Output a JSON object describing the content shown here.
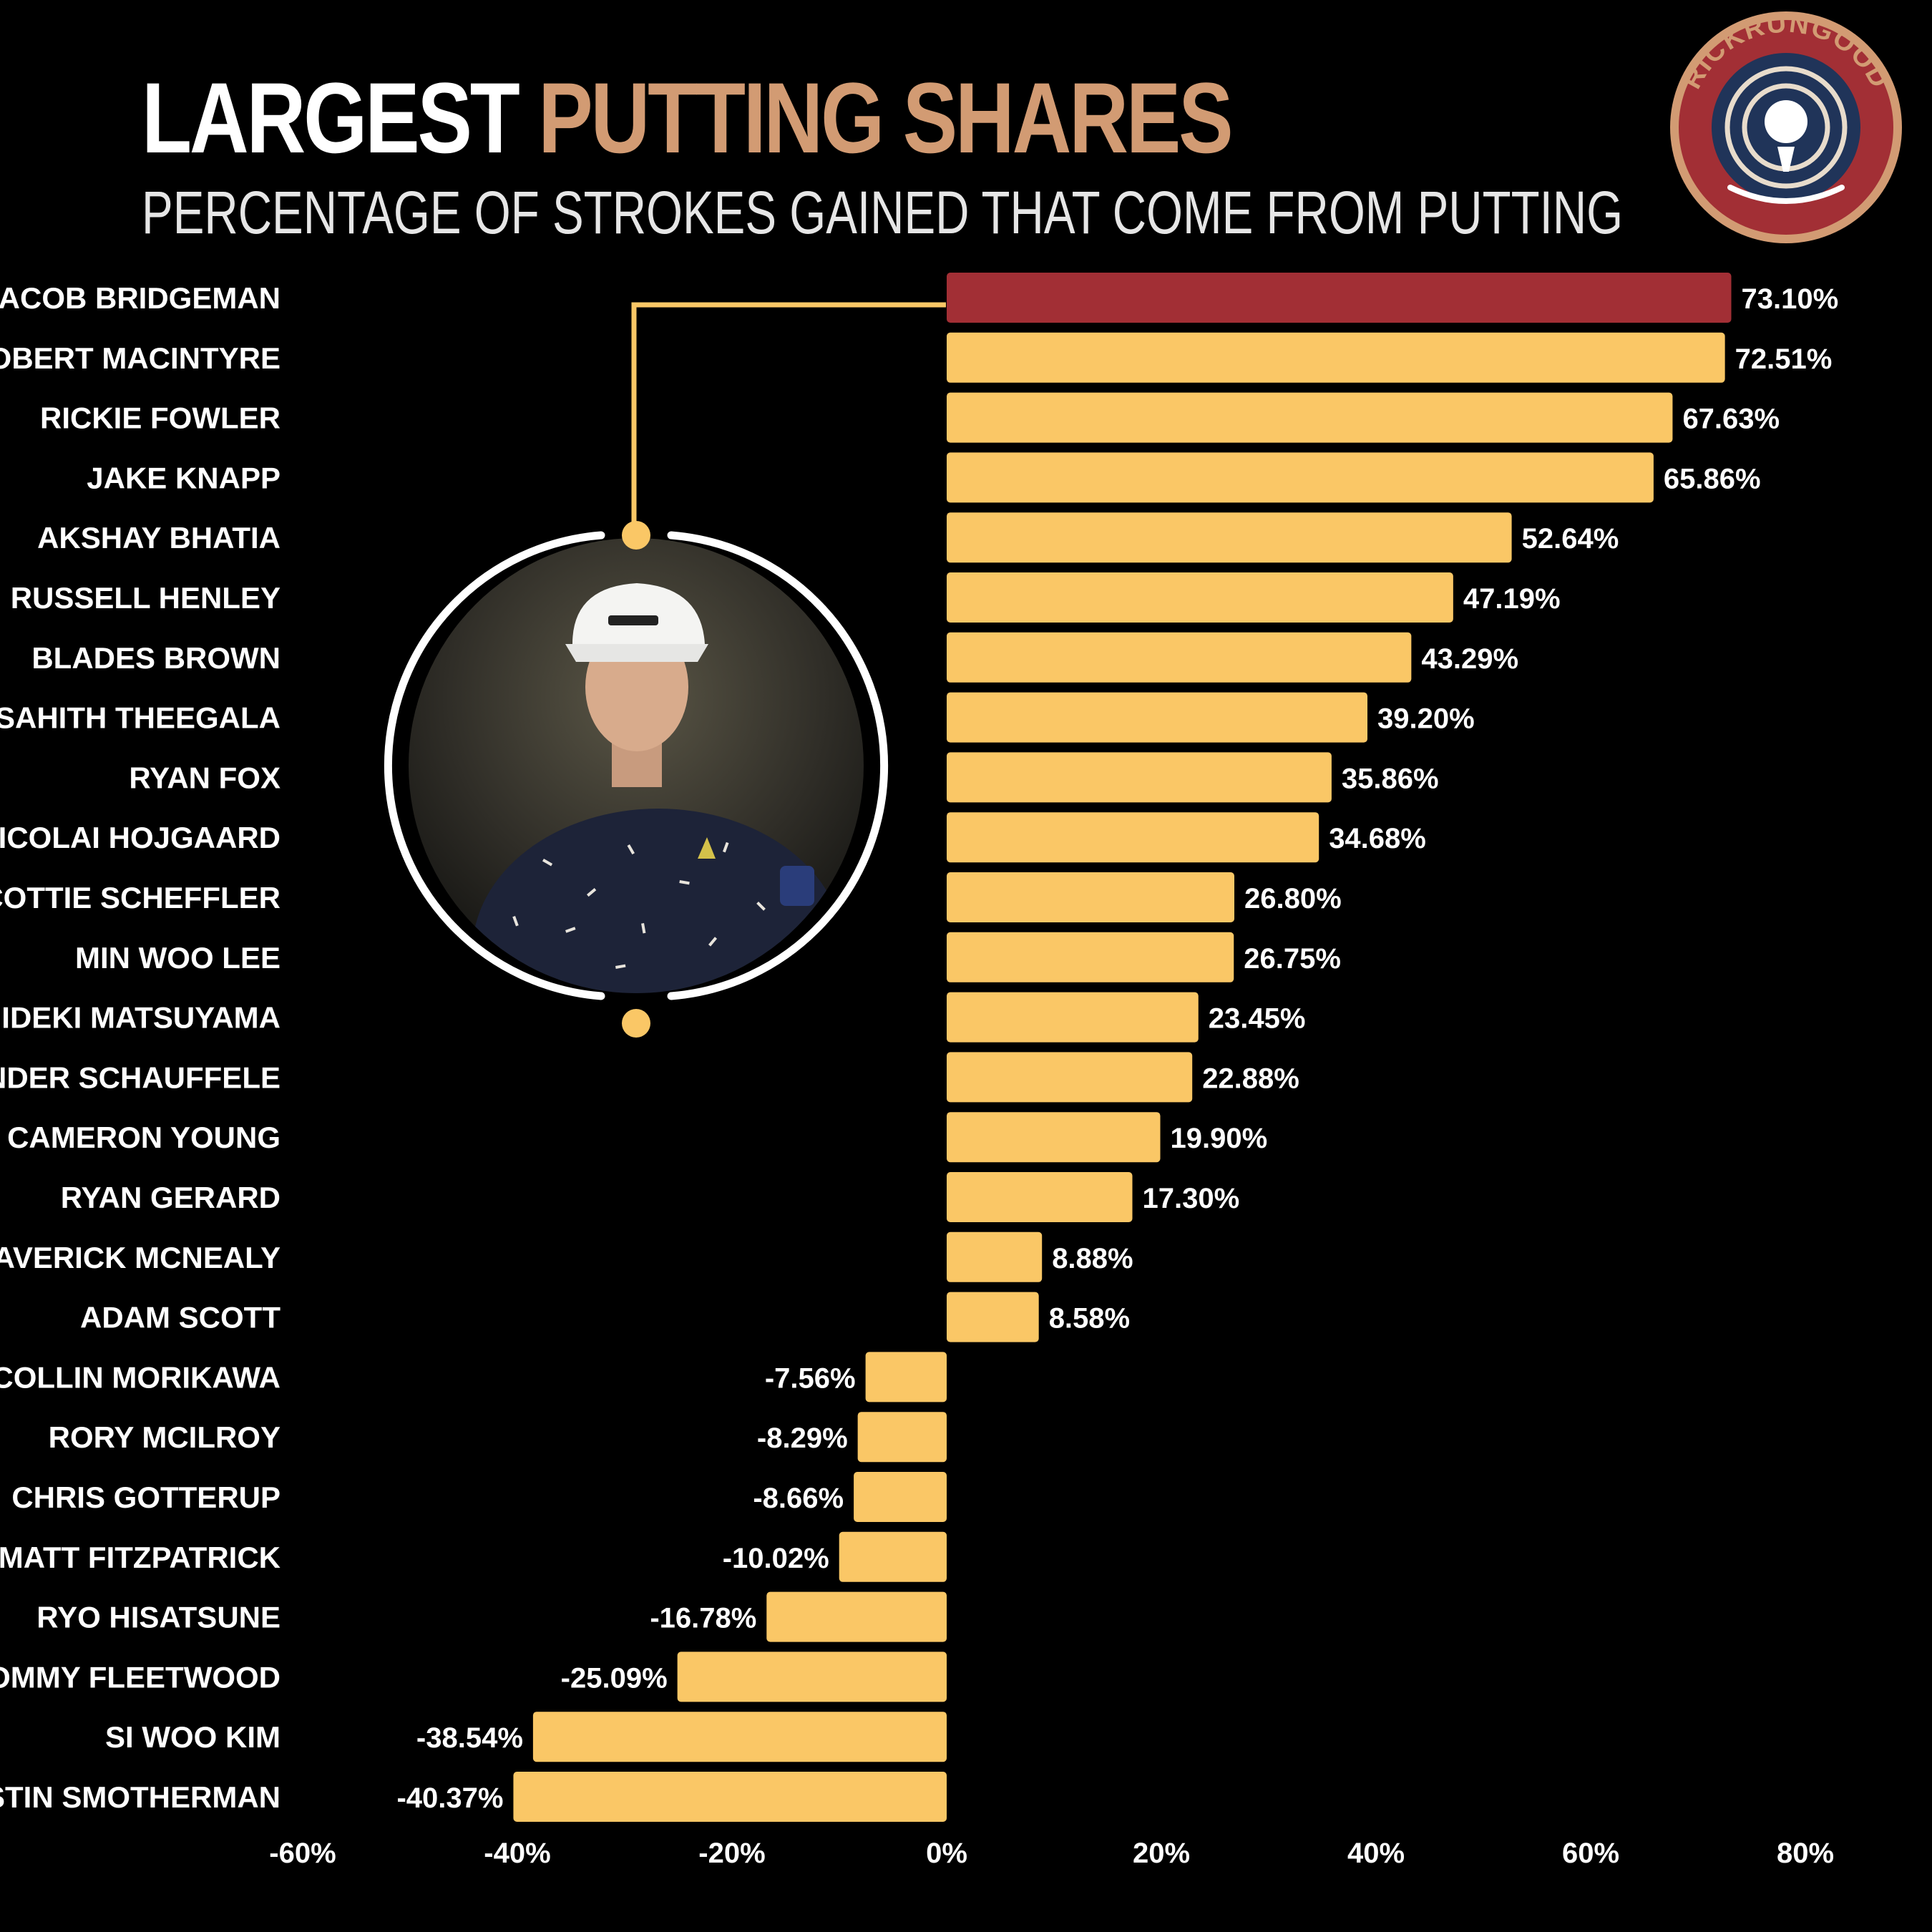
{
  "header": {
    "title_part1": "LARGEST",
    "title_part2": "PUTTING SHARES",
    "subtitle": "PERCENTAGE OF STROKES GAINED THAT COME FROM PUTTING"
  },
  "logo": {
    "text": "RICKRUNGOOD"
  },
  "colors": {
    "background": "#000000",
    "bar": "#fac766",
    "highlight_bar": "#a22f35",
    "title_accent": "#d29b73",
    "logo_ring": "#a22f35",
    "logo_outer": "#d29b73",
    "logo_inner": "#203459"
  },
  "chart_data": {
    "type": "bar",
    "orientation": "horizontal",
    "title": "LARGEST PUTTING SHARES",
    "subtitle": "PERCENTAGE OF STROKES GAINED THAT COME FROM PUTTING",
    "xlim": [
      -60,
      80
    ],
    "xticks": [
      -60,
      -40,
      -20,
      0,
      20,
      40,
      60,
      80
    ],
    "xtick_labels": [
      "-60%",
      "-40%",
      "-20%",
      "0%",
      "20%",
      "40%",
      "60%",
      "80%"
    ],
    "highlight": "JACOB BRIDGEMAN",
    "categories": [
      "JACOB BRIDGEMAN",
      "ROBERT MACINTYRE",
      "RICKIE FOWLER",
      "JAKE KNAPP",
      "AKSHAY BHATIA",
      "RUSSELL HENLEY",
      "BLADES BROWN",
      "SAHITH THEEGALA",
      "RYAN FOX",
      "NICOLAI HOJGAARD",
      "SCOTTIE SCHEFFLER",
      "MIN WOO LEE",
      "HIDEKI MATSUYAMA",
      "XANDER SCHAUFFELE",
      "CAMERON YOUNG",
      "RYAN GERARD",
      "MAVERICK MCNEALY",
      "ADAM SCOTT",
      "COLLIN MORIKAWA",
      "RORY MCILROY",
      "CHRIS GOTTERUP",
      "MATT FITZPATRICK",
      "RYO HISATSUNE",
      "TOMMY FLEETWOOD",
      "SI WOO KIM",
      "AUSTIN SMOTHERMAN"
    ],
    "values": [
      73.1,
      72.51,
      67.63,
      65.86,
      52.64,
      47.19,
      43.29,
      39.2,
      35.86,
      34.68,
      26.8,
      26.75,
      23.45,
      22.88,
      19.9,
      17.3,
      8.88,
      8.58,
      -7.56,
      -8.29,
      -8.66,
      -10.02,
      -16.78,
      -25.09,
      -38.54,
      -40.37
    ],
    "value_labels": [
      "73.10%",
      "72.51%",
      "67.63%",
      "65.86%",
      "52.64%",
      "47.19%",
      "43.29%",
      "39.20%",
      "35.86%",
      "34.68%",
      "26.80%",
      "26.75%",
      "23.45%",
      "22.88%",
      "19.90%",
      "17.30%",
      "8.88%",
      "8.58%",
      "-7.56%",
      "-8.29%",
      "-8.66%",
      "-10.02%",
      "-16.78%",
      "-25.09%",
      "-38.54%",
      "-40.37%"
    ]
  }
}
